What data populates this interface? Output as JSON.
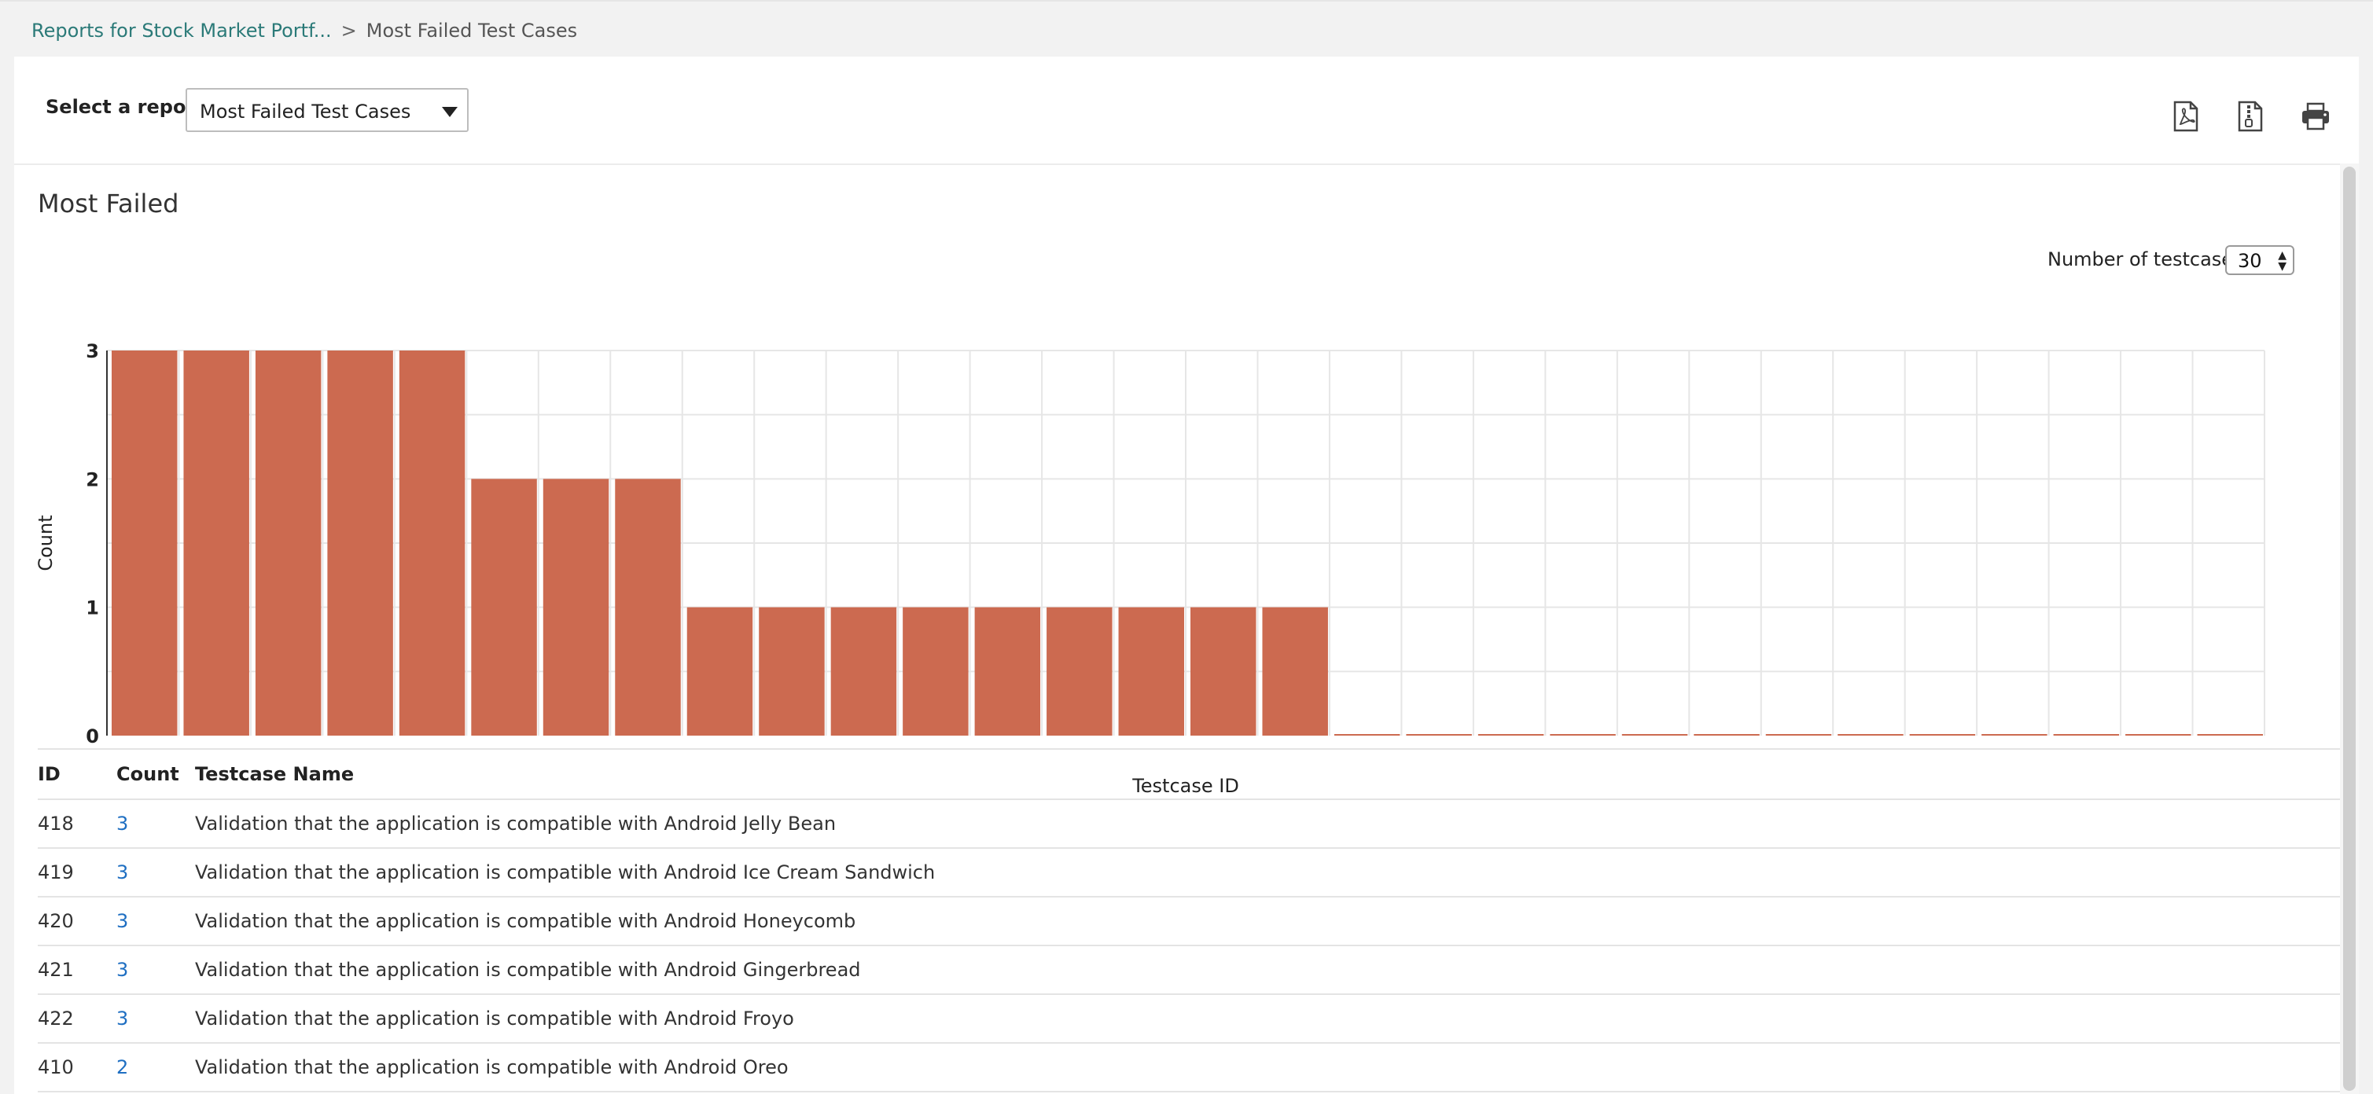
{
  "breadcrumb": {
    "parent": "Reports for Stock Market Portf...",
    "separator": ">",
    "current": "Most Failed Test Cases"
  },
  "toolbar": {
    "select_label": "Select a report",
    "selected_report": "Most Failed Test Cases",
    "icons": [
      "pdf-export-icon",
      "file-export-icon",
      "print-icon"
    ]
  },
  "section": {
    "title": "Most Failed"
  },
  "testcase_control": {
    "label": "Number of testcases:",
    "value": "30"
  },
  "colors": {
    "bar": "#cc6a50",
    "link": "#1f6fc2",
    "breadcrumb_link": "#2b7a78"
  },
  "chart_data": {
    "type": "bar",
    "ylabel": "Count",
    "xlabel": "Testcase ID",
    "ylim": [
      0,
      3
    ],
    "yticks": [
      "0",
      "1",
      "2",
      "3"
    ],
    "grid": true,
    "values": [
      3,
      3,
      3,
      3,
      3,
      2,
      2,
      2,
      1,
      1,
      1,
      1,
      1,
      1,
      1,
      1,
      1,
      0,
      0,
      0,
      0,
      0,
      0,
      0,
      0,
      0,
      0,
      0,
      0,
      0
    ]
  },
  "table": {
    "headers": [
      "ID",
      "Count",
      "Testcase Name"
    ],
    "rows": [
      {
        "id": "418",
        "count": "3",
        "name": "Validation that the application is compatible with Android Jelly Bean"
      },
      {
        "id": "419",
        "count": "3",
        "name": "Validation that the application is compatible with Android Ice Cream Sandwich"
      },
      {
        "id": "420",
        "count": "3",
        "name": "Validation that the application is compatible with Android Honeycomb"
      },
      {
        "id": "421",
        "count": "3",
        "name": "Validation that the application is compatible with Android Gingerbread"
      },
      {
        "id": "422",
        "count": "3",
        "name": "Validation that the application is compatible with Android Froyo"
      },
      {
        "id": "410",
        "count": "2",
        "name": "Validation that the application is compatible with Android Oreo"
      }
    ]
  }
}
